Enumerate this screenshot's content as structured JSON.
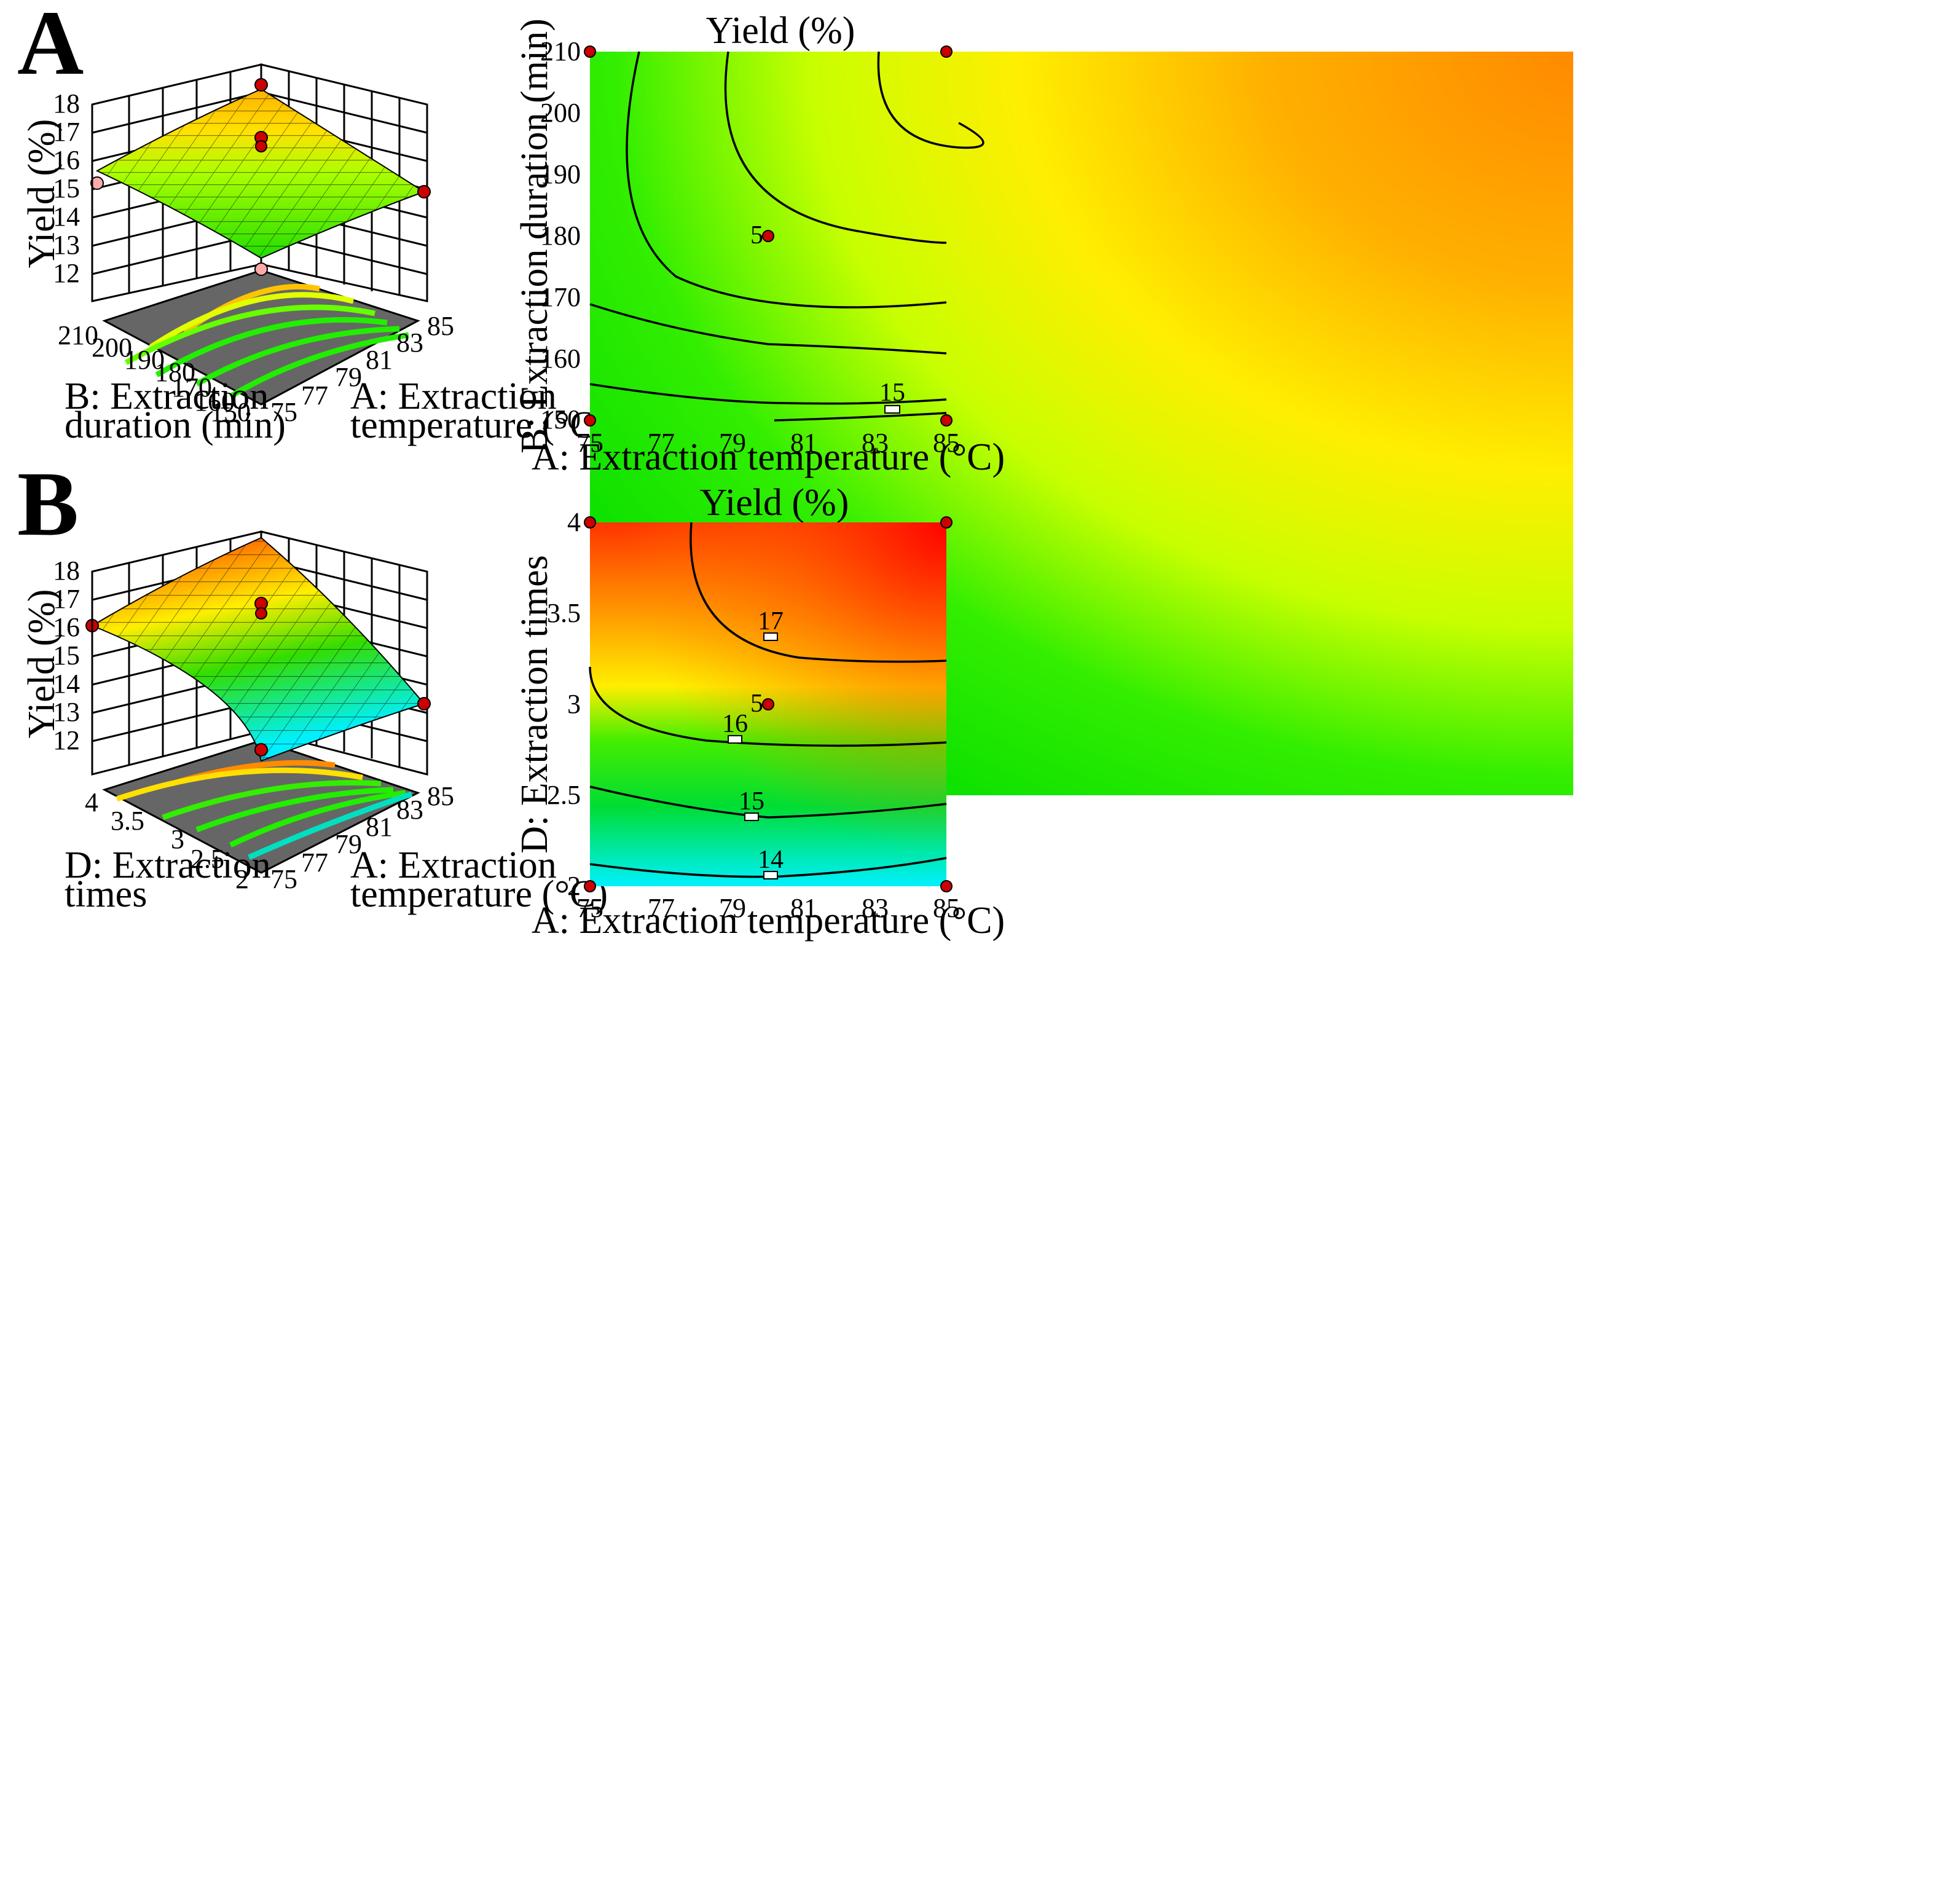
{
  "panels": [
    {
      "letter": "A",
      "contour_plot": {
        "title": "Yield (%)",
        "xlabel": "A: Extraction temperature (°C)",
        "ylabel": "B: Extraction duration (min)",
        "xticks": [
          "75",
          "77",
          "79",
          "81",
          "83",
          "85"
        ],
        "yticks": [
          "150",
          "160",
          "170",
          "180",
          "190",
          "200",
          "210"
        ],
        "center_point_label": "5",
        "contour_labels": [
          "15"
        ]
      },
      "surface_plot": {
        "zlabel": "Yield (%)",
        "zticks": [
          "12",
          "13",
          "14",
          "15",
          "16",
          "17",
          "18"
        ],
        "xlabel_line1": "A: Extraction",
        "xlabel_line2": "temperature (°C)",
        "ylabel_line1": "B: Extraction",
        "ylabel_line2": "duration (min)",
        "xticks": [
          "75",
          "77",
          "79",
          "81",
          "83",
          "85"
        ],
        "yticks": [
          "150",
          "160",
          "170",
          "180",
          "190",
          "200",
          "210"
        ]
      }
    },
    {
      "letter": "B",
      "contour_plot": {
        "title": "Yield (%)",
        "xlabel": "A: Extraction temperature (°C)",
        "ylabel": "D: Extraction times",
        "xticks": [
          "75",
          "77",
          "79",
          "81",
          "83",
          "85"
        ],
        "yticks": [
          "2",
          "2.5",
          "3",
          "3.5",
          "4"
        ],
        "center_point_label": "5",
        "contour_labels": [
          "14",
          "15",
          "16",
          "17"
        ]
      },
      "surface_plot": {
        "zlabel": "Yield (%)",
        "zticks": [
          "12",
          "13",
          "14",
          "15",
          "16",
          "17",
          "18"
        ],
        "xlabel_line1": "A: Extraction",
        "xlabel_line2": "temperature (°C)",
        "ylabel_line1": "D: Extraction",
        "ylabel_line2": "times",
        "xticks": [
          "75",
          "77",
          "79",
          "81",
          "83",
          "85"
        ],
        "yticks": [
          "2",
          "2.5",
          "3",
          "3.5",
          "4"
        ]
      }
    }
  ],
  "chart_data": [
    {
      "type": "heatmap",
      "panel": "A-contour",
      "title": "Yield (%)",
      "xlabel": "A: Extraction temperature (°C)",
      "ylabel": "B: Extraction duration (min)",
      "xlim": [
        75,
        85
      ],
      "ylim": [
        150,
        210
      ],
      "design_points": [
        {
          "x": 75,
          "y": 150
        },
        {
          "x": 85,
          "y": 150
        },
        {
          "x": 75,
          "y": 210
        },
        {
          "x": 85,
          "y": 210
        },
        {
          "x": 80,
          "y": 180,
          "label": "5"
        }
      ],
      "contour_levels": [
        15
      ],
      "colormap": [
        "#00e000",
        "#7fff00",
        "#ffff00",
        "#ff9000",
        "#ff0000"
      ]
    },
    {
      "type": "heatmap",
      "panel": "B-contour",
      "title": "Yield (%)",
      "xlabel": "A: Extraction temperature (°C)",
      "ylabel": "D: Extraction times",
      "xlim": [
        75,
        85
      ],
      "ylim": [
        2,
        4
      ],
      "design_points": [
        {
          "x": 75,
          "y": 2
        },
        {
          "x": 85,
          "y": 2
        },
        {
          "x": 75,
          "y": 4
        },
        {
          "x": 85,
          "y": 4
        },
        {
          "x": 80,
          "y": 3,
          "label": "5"
        }
      ],
      "contour_levels": [
        14,
        15,
        16,
        17
      ],
      "colormap": [
        "#00ffff",
        "#00e000",
        "#ffff00",
        "#ff9000",
        "#ff0000"
      ]
    },
    {
      "type": "surface",
      "panel": "A-surface",
      "zlabel": "Yield (%)",
      "zlim": [
        12,
        18
      ],
      "xlabel": "A: Extraction temperature (°C)",
      "ylabel": "B: Extraction duration (min)",
      "xlim": [
        75,
        85
      ],
      "ylim": [
        150,
        210
      ],
      "corner_values": {
        "x75_y150": 12.9,
        "x85_y150": 14.6,
        "x75_y210": 15.5,
        "x85_y210": 17.6
      }
    },
    {
      "type": "surface",
      "panel": "B-surface",
      "zlabel": "Yield (%)",
      "zlim": [
        12,
        18
      ],
      "xlabel": "A: Extraction temperature (°C)",
      "ylabel": "D: Extraction times",
      "xlim": [
        75,
        85
      ],
      "ylim": [
        2,
        4
      ],
      "corner_values": {
        "x75_y2": 11.4,
        "x85_y2": 12.7,
        "x75_y4": 16.3,
        "x85_y4": 18.3
      }
    }
  ]
}
